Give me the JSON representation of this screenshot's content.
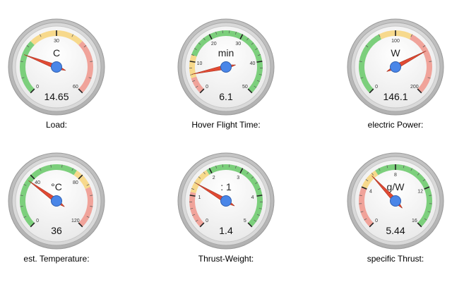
{
  "colors": {
    "green": "#7ccf7c",
    "yellow": "#f7d98c",
    "red": "#f0a39a",
    "needle": "#e24a33",
    "hub": "#4a86e8",
    "face": "#f5f5f5",
    "bezel": "#b0b0b0"
  },
  "gauges": [
    {
      "id": "load",
      "label": "Load:",
      "unit": "C",
      "min": 0,
      "max": 60,
      "value": 14.65,
      "display": "14.65",
      "ticks": [
        "0",
        "30",
        "60"
      ],
      "bands": [
        {
          "from": 0,
          "to": 20,
          "color": "green"
        },
        {
          "from": 20,
          "to": 40,
          "color": "yellow"
        },
        {
          "from": 40,
          "to": 60,
          "color": "red"
        }
      ]
    },
    {
      "id": "hover",
      "label": "Hover Flight Time:",
      "unit": "min",
      "min": 0,
      "max": 50,
      "value": 6.1,
      "display": "6.1",
      "ticks": [
        "0",
        "10",
        "20",
        "30",
        "40",
        "50"
      ],
      "bands": [
        {
          "from": 0,
          "to": 5,
          "color": "red"
        },
        {
          "from": 5,
          "to": 12,
          "color": "yellow"
        },
        {
          "from": 12,
          "to": 50,
          "color": "green"
        }
      ]
    },
    {
      "id": "power",
      "label": "electric Power:",
      "unit": "W",
      "min": 0,
      "max": 200,
      "value": 146.1,
      "display": "146.1",
      "ticks": [
        "0",
        "100",
        "200"
      ],
      "bands": [
        {
          "from": 0,
          "to": 80,
          "color": "green"
        },
        {
          "from": 80,
          "to": 120,
          "color": "yellow"
        },
        {
          "from": 120,
          "to": 200,
          "color": "red"
        }
      ]
    },
    {
      "id": "temp",
      "label": "est. Temperature:",
      "unit": "°C",
      "min": 0,
      "max": 120,
      "value": 36,
      "display": "36",
      "ticks": [
        "0",
        "40",
        "80",
        "120"
      ],
      "bands": [
        {
          "from": 0,
          "to": 75,
          "color": "green"
        },
        {
          "from": 75,
          "to": 90,
          "color": "yellow"
        },
        {
          "from": 90,
          "to": 120,
          "color": "red"
        }
      ]
    },
    {
      "id": "thrust-weight",
      "label": "Thrust-Weight:",
      "unit": ": 1",
      "min": 0,
      "max": 5,
      "value": 1.4,
      "display": "1.4",
      "ticks": [
        "0",
        "1",
        "2",
        "3",
        "4",
        "5"
      ],
      "bands": [
        {
          "from": 0,
          "to": 1.1,
          "color": "red"
        },
        {
          "from": 1.1,
          "to": 1.9,
          "color": "yellow"
        },
        {
          "from": 1.9,
          "to": 5,
          "color": "green"
        }
      ]
    },
    {
      "id": "specific-thrust",
      "label": "specific Thrust:",
      "unit": "g/W",
      "min": 0,
      "max": 16,
      "value": 5.44,
      "display": "5.44",
      "ticks": [
        "0",
        "4",
        "8",
        "12",
        "16"
      ],
      "bands": [
        {
          "from": 0,
          "to": 4,
          "color": "red"
        },
        {
          "from": 4,
          "to": 6,
          "color": "yellow"
        },
        {
          "from": 6,
          "to": 16,
          "color": "green"
        }
      ]
    }
  ]
}
